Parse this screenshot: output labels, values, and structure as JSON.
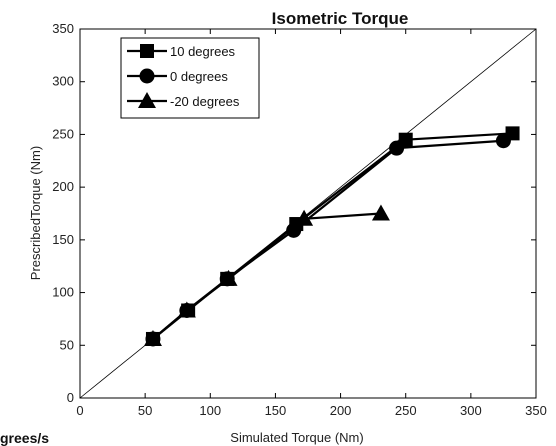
{
  "chart_data": {
    "type": "line",
    "title": "Isometric Torque",
    "xlabel": "Simulated Torque (Nm)",
    "ylabel": "PrescribedTorque (Nm)",
    "xlim": [
      0,
      350
    ],
    "ylim": [
      0,
      350
    ],
    "xticks": [
      0,
      50,
      100,
      150,
      200,
      250,
      300,
      350
    ],
    "yticks": [
      0,
      50,
      100,
      150,
      200,
      250,
      300,
      350
    ],
    "grid": false,
    "legend_position": "top-left",
    "reference_line": {
      "x": [
        0,
        350
      ],
      "y": [
        0,
        350
      ]
    },
    "series": [
      {
        "name": "10 degrees",
        "marker": "square",
        "color": "#000000",
        "x": [
          56,
          83,
          113,
          166,
          250,
          332
        ],
        "y": [
          56,
          83,
          113,
          165,
          245,
          251
        ]
      },
      {
        "name": "0 degrees",
        "marker": "circle",
        "color": "#000000",
        "x": [
          56,
          82,
          113,
          164,
          243,
          325
        ],
        "y": [
          56,
          83,
          113,
          159,
          237,
          244
        ]
      },
      {
        "name": "-20 degrees",
        "marker": "triangle",
        "color": "#000000",
        "x": [
          56,
          82,
          114,
          172,
          231
        ],
        "y": [
          56,
          83,
          113,
          170,
          175
        ]
      }
    ]
  },
  "cropped_text": "grees/s"
}
